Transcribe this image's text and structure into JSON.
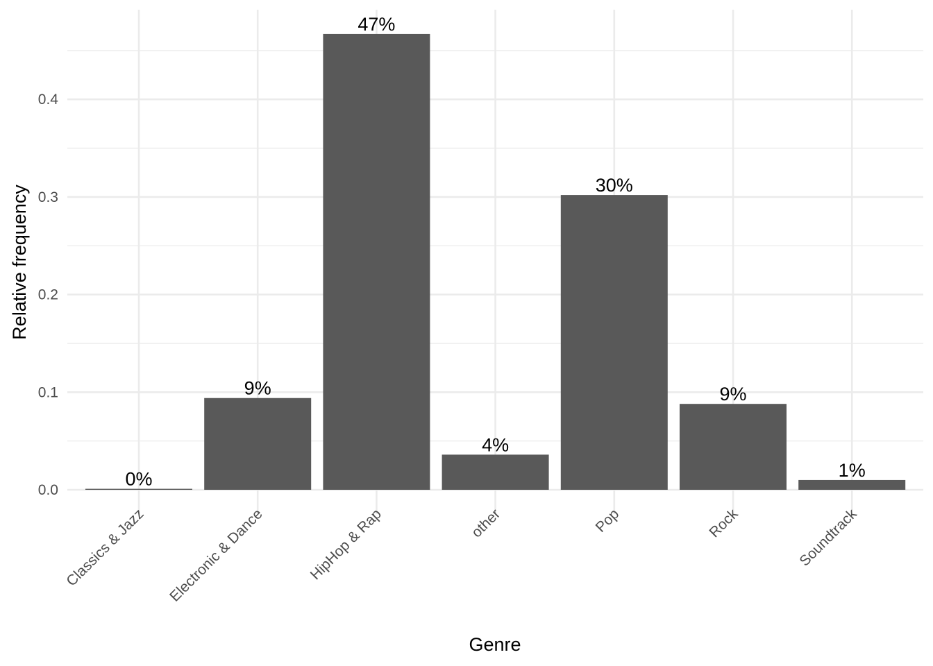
{
  "chart_data": {
    "type": "bar",
    "categories": [
      "Classics & Jazz",
      "Electronic & Dance",
      "HipHop & Rap",
      "other",
      "Pop",
      "Rock",
      "Soundtrack"
    ],
    "values": [
      0.001,
      0.094,
      0.467,
      0.036,
      0.302,
      0.088,
      0.01
    ],
    "data_labels": [
      "0%",
      "9%",
      "47%",
      "4%",
      "30%",
      "9%",
      "1%"
    ],
    "xlabel": "Genre",
    "ylabel": "Relative frequency",
    "ylim": [
      0,
      0.49
    ],
    "yticks": [
      0.0,
      0.1,
      0.2,
      0.3,
      0.4
    ],
    "ytick_labels": [
      "0.0",
      "0.1",
      "0.2",
      "0.3",
      "0.4"
    ],
    "grid": true,
    "legend": "none",
    "colors": {
      "bar": "#595959",
      "grid": "#ebebeb",
      "background": "#ffffff"
    }
  }
}
